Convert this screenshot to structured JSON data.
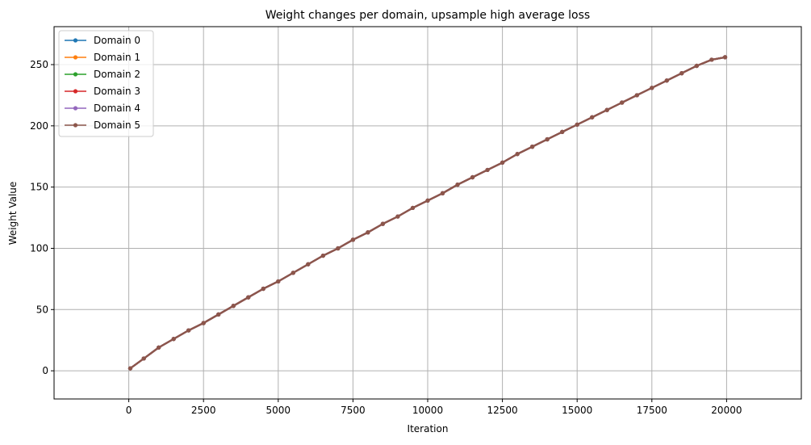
{
  "chart_data": {
    "type": "line",
    "title": "Weight changes per domain, upsample high average loss",
    "xlabel": "Iteration",
    "ylabel": "Weight Value",
    "xlim": [
      -2500,
      22500
    ],
    "ylim": [
      -23,
      281
    ],
    "xticks": [
      0,
      2500,
      5000,
      7500,
      10000,
      12500,
      15000,
      17500,
      20000
    ],
    "yticks": [
      0,
      50,
      100,
      150,
      200,
      250
    ],
    "grid": true,
    "legend_position": "top-left",
    "x": [
      50,
      500,
      1000,
      1500,
      2000,
      2500,
      3000,
      3500,
      4000,
      4500,
      5000,
      5500,
      6000,
      6500,
      7000,
      7500,
      8000,
      8500,
      9000,
      9500,
      10000,
      10500,
      11000,
      11500,
      12000,
      12500,
      13000,
      13500,
      14000,
      14500,
      15000,
      15500,
      16000,
      16500,
      17000,
      17500,
      18000,
      18500,
      19000,
      19500,
      19950
    ],
    "series": [
      {
        "name": "Domain 0",
        "color": "#1f77b4",
        "values": [
          2,
          10,
          19,
          26,
          33,
          39,
          46,
          53,
          60,
          67,
          73,
          80,
          87,
          94,
          100,
          107,
          113,
          120,
          126,
          133,
          139,
          145,
          152,
          158,
          164,
          170,
          177,
          183,
          189,
          195,
          201,
          207,
          213,
          219,
          225,
          231,
          237,
          243,
          249,
          254,
          256
        ]
      },
      {
        "name": "Domain 1",
        "color": "#ff7f0e",
        "values": [
          2,
          10,
          19,
          26,
          33,
          39,
          46,
          53,
          60,
          67,
          73,
          80,
          87,
          94,
          100,
          107,
          113,
          120,
          126,
          133,
          139,
          145,
          152,
          158,
          164,
          170,
          177,
          183,
          189,
          195,
          201,
          207,
          213,
          219,
          225,
          231,
          237,
          243,
          249,
          254,
          256
        ]
      },
      {
        "name": "Domain 2",
        "color": "#2ca02c",
        "values": [
          2,
          10,
          19,
          26,
          33,
          39,
          46,
          53,
          60,
          67,
          73,
          80,
          87,
          94,
          100,
          107,
          113,
          120,
          126,
          133,
          139,
          145,
          152,
          158,
          164,
          170,
          177,
          183,
          189,
          195,
          201,
          207,
          213,
          219,
          225,
          231,
          237,
          243,
          249,
          254,
          256
        ]
      },
      {
        "name": "Domain 3",
        "color": "#d62728",
        "values": [
          2,
          10,
          19,
          26,
          33,
          39,
          46,
          53,
          60,
          67,
          73,
          80,
          87,
          94,
          100,
          107,
          113,
          120,
          126,
          133,
          139,
          145,
          152,
          158,
          164,
          170,
          177,
          183,
          189,
          195,
          201,
          207,
          213,
          219,
          225,
          231,
          237,
          243,
          249,
          254,
          256
        ]
      },
      {
        "name": "Domain 4",
        "color": "#9467bd",
        "values": [
          2,
          10,
          19,
          26,
          33,
          39,
          46,
          53,
          60,
          67,
          73,
          80,
          87,
          94,
          100,
          107,
          113,
          120,
          126,
          133,
          139,
          145,
          152,
          158,
          164,
          170,
          177,
          183,
          189,
          195,
          201,
          207,
          213,
          219,
          225,
          231,
          237,
          243,
          249,
          254,
          256
        ]
      },
      {
        "name": "Domain 5",
        "color": "#8c564b",
        "values": [
          2,
          10,
          19,
          26,
          33,
          39,
          46,
          53,
          60,
          67,
          73,
          80,
          87,
          94,
          100,
          107,
          113,
          120,
          126,
          133,
          139,
          145,
          152,
          158,
          164,
          170,
          177,
          183,
          189,
          195,
          201,
          207,
          213,
          219,
          225,
          231,
          237,
          243,
          249,
          254,
          256
        ]
      }
    ]
  }
}
